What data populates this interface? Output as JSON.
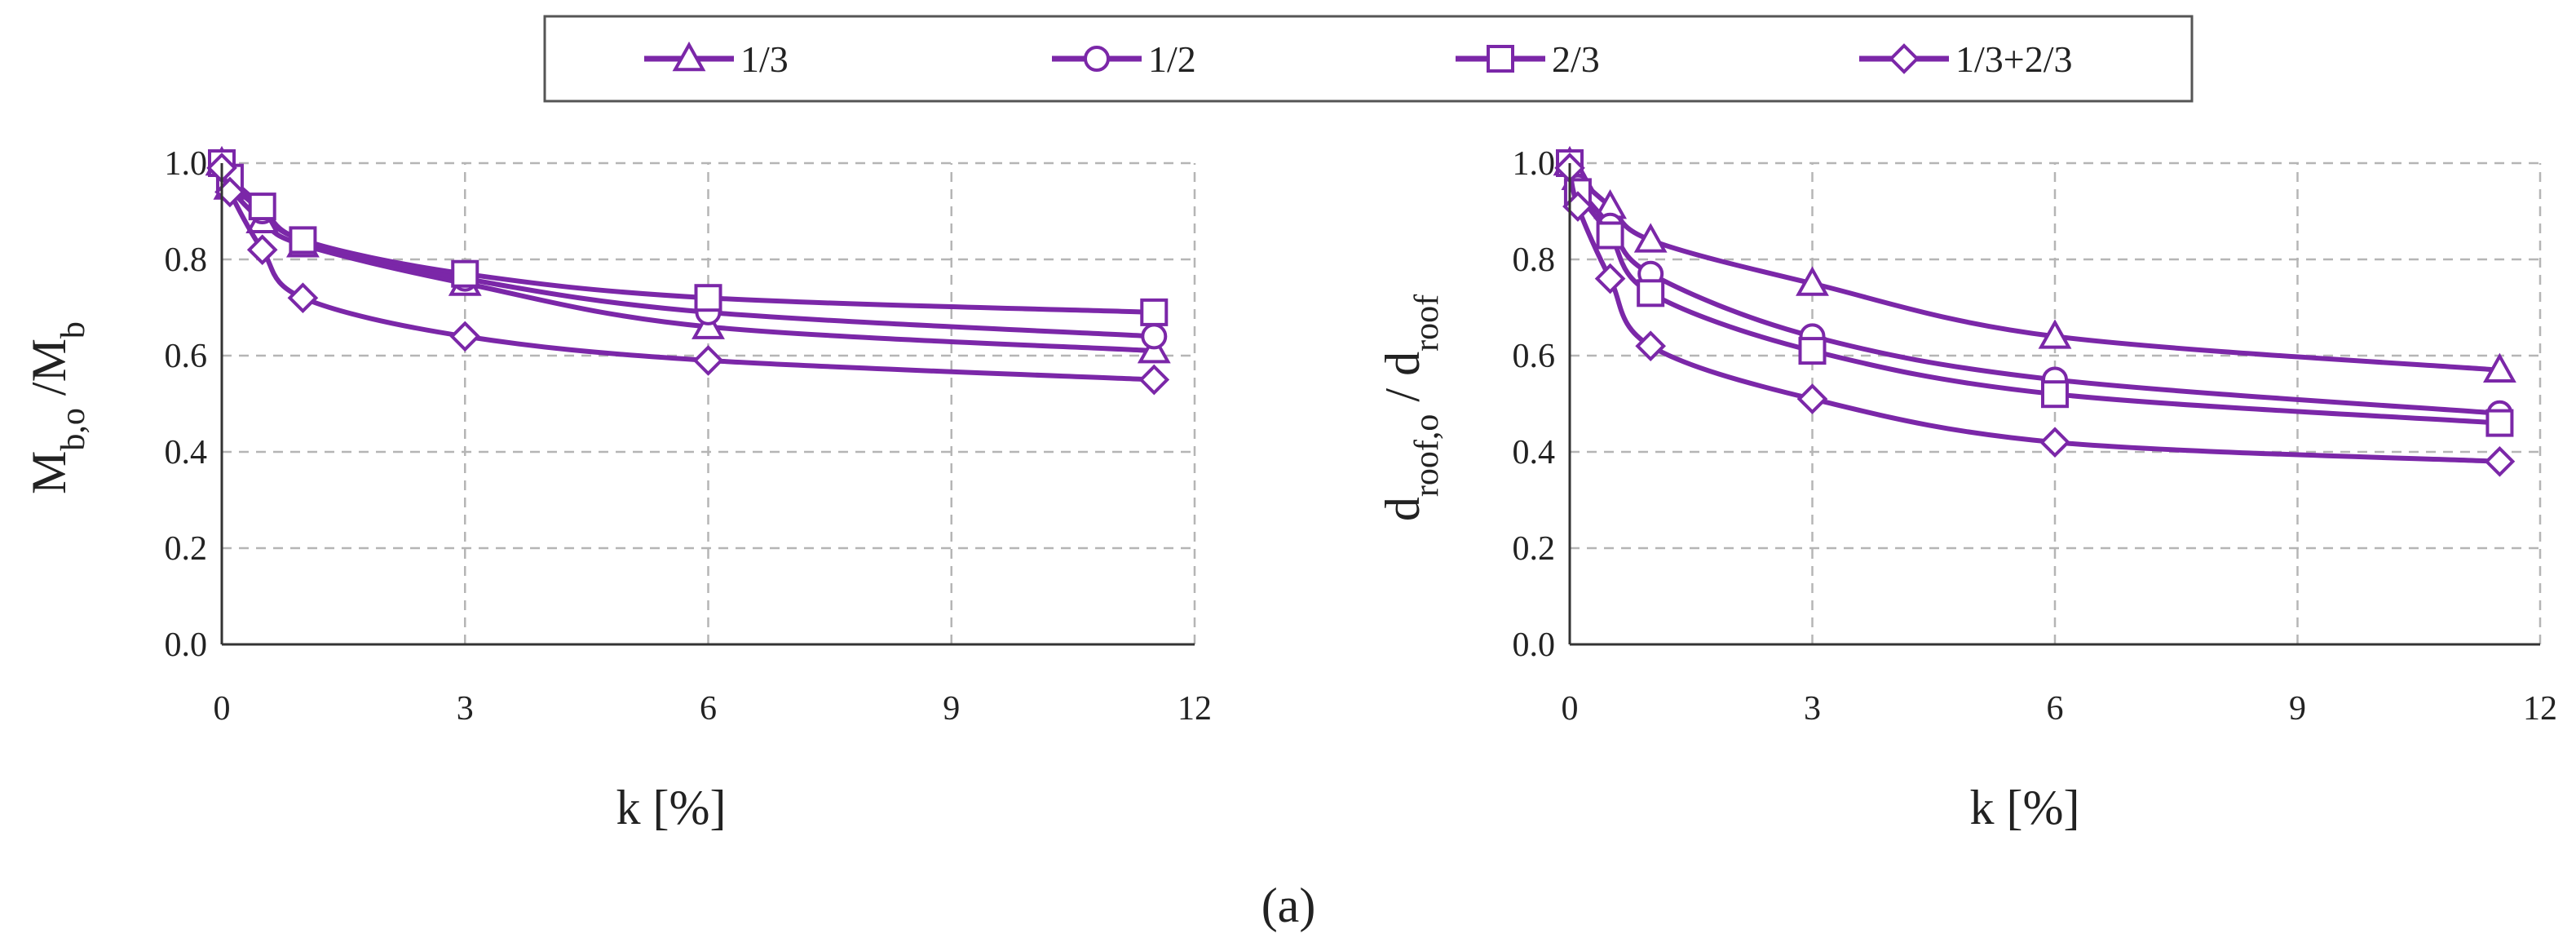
{
  "figure": {
    "caption": "(a)",
    "series_color": "#7B27A8",
    "legend": [
      {
        "label": "1/3",
        "marker": "triangle"
      },
      {
        "label": "1/2",
        "marker": "circle"
      },
      {
        "label": "2/3",
        "marker": "square"
      },
      {
        "label": "1/3+2/3",
        "marker": "diamond"
      }
    ]
  },
  "chart_data": [
    {
      "type": "line",
      "title": "",
      "xlabel": "k [%]",
      "ylabel": {
        "main": "M",
        "main_sub": "b,o",
        "sep": " /M",
        "sep_sub": "b"
      },
      "xlim": [
        0,
        12
      ],
      "ylim": [
        0,
        1.0
      ],
      "xticks": [
        "0",
        "3",
        "6",
        "9",
        "12"
      ],
      "yticks": [
        "0.0",
        "0.2",
        "0.4",
        "0.6",
        "0.8",
        "1.0"
      ],
      "grid": true,
      "series": [
        {
          "name": "1/3",
          "marker": "triangle",
          "x": [
            0,
            0.1,
            0.5,
            1,
            3,
            6,
            11.5
          ],
          "y": [
            1.0,
            0.95,
            0.88,
            0.83,
            0.75,
            0.66,
            0.61
          ]
        },
        {
          "name": "1/2",
          "marker": "circle",
          "x": [
            0,
            0.1,
            0.5,
            1,
            3,
            6,
            11.5
          ],
          "y": [
            1.0,
            0.96,
            0.9,
            0.84,
            0.76,
            0.69,
            0.64
          ]
        },
        {
          "name": "2/3",
          "marker": "square",
          "x": [
            0,
            0.1,
            0.5,
            1,
            3,
            6,
            11.5
          ],
          "y": [
            1.0,
            0.97,
            0.91,
            0.84,
            0.77,
            0.72,
            0.69
          ]
        },
        {
          "name": "1/3+2/3",
          "marker": "diamond",
          "x": [
            0,
            0.1,
            0.5,
            1,
            3,
            6,
            11.5
          ],
          "y": [
            0.99,
            0.94,
            0.82,
            0.72,
            0.64,
            0.59,
            0.55
          ]
        }
      ]
    },
    {
      "type": "line",
      "title": "",
      "xlabel": "k [%]",
      "ylabel": {
        "main": "d",
        "main_sub": "roof,o",
        "sep": " / d",
        "sep_sub": "roof"
      },
      "xlim": [
        0,
        12
      ],
      "ylim": [
        0,
        1.0
      ],
      "xticks": [
        "0",
        "3",
        "6",
        "9",
        "12"
      ],
      "yticks": [
        "0.0",
        "0.2",
        "0.4",
        "0.6",
        "0.8",
        "1.0"
      ],
      "grid": true,
      "series": [
        {
          "name": "1/3",
          "marker": "triangle",
          "x": [
            0,
            0.1,
            0.5,
            1,
            3,
            6,
            11.5
          ],
          "y": [
            1.0,
            0.97,
            0.91,
            0.84,
            0.75,
            0.64,
            0.57
          ]
        },
        {
          "name": "1/2",
          "marker": "circle",
          "x": [
            0,
            0.1,
            0.5,
            1,
            3,
            6,
            11.5
          ],
          "y": [
            1.0,
            0.95,
            0.87,
            0.77,
            0.64,
            0.55,
            0.48
          ]
        },
        {
          "name": "2/3",
          "marker": "square",
          "x": [
            0,
            0.1,
            0.5,
            1,
            3,
            6,
            11.5
          ],
          "y": [
            1.0,
            0.94,
            0.85,
            0.73,
            0.61,
            0.52,
            0.46
          ]
        },
        {
          "name": "1/3+2/3",
          "marker": "diamond",
          "x": [
            0,
            0.1,
            0.5,
            1,
            3,
            6,
            11.5
          ],
          "y": [
            0.99,
            0.91,
            0.76,
            0.62,
            0.51,
            0.42,
            0.38
          ]
        }
      ]
    }
  ]
}
